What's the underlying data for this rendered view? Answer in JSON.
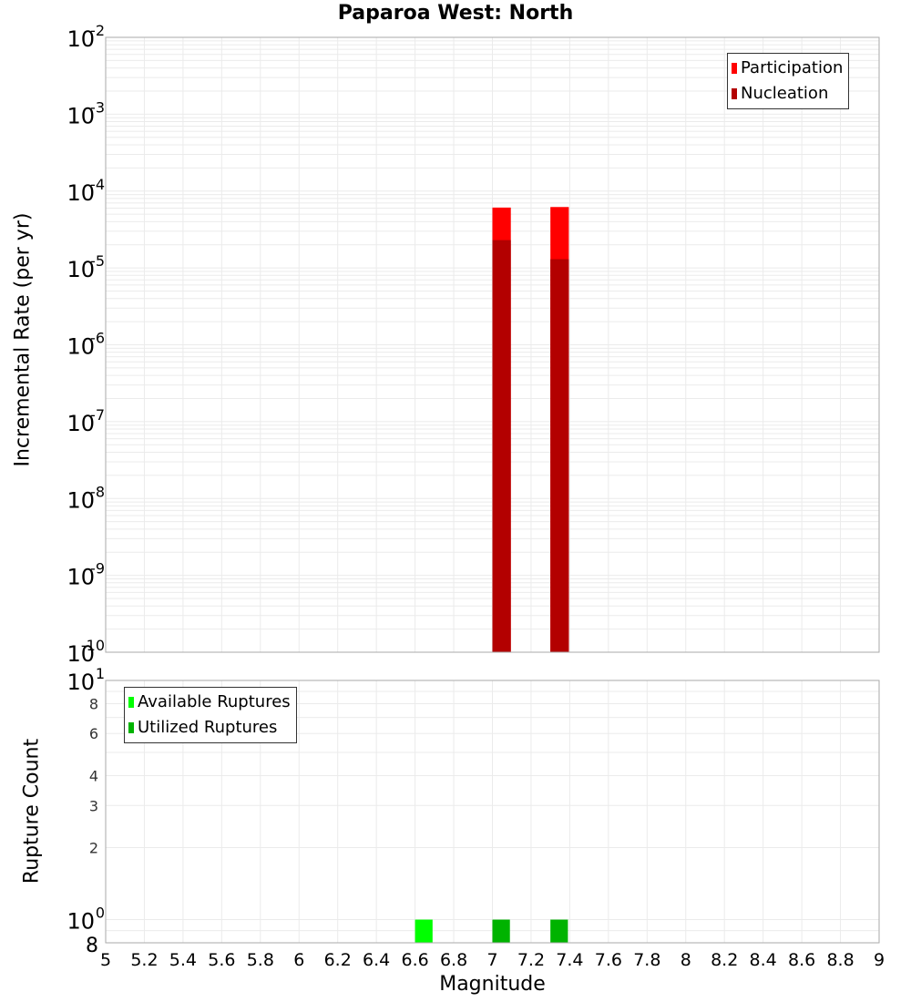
{
  "title": "Paparoa West: North",
  "colors": {
    "participation": "#ff0000",
    "nucleation": "#b30000",
    "available": "#00ff00",
    "utilized": "#00b300",
    "grid": "#ebebeb",
    "frame": "#aaaaaa"
  },
  "top_panel": {
    "ylabel": "Incremental Rate (per yr)",
    "legend": [
      {
        "label": "Participation",
        "color": "#ff0000"
      },
      {
        "label": "Nucleation",
        "color": "#b30000"
      }
    ]
  },
  "bottom_panel": {
    "ylabel": "Rupture Count",
    "legend": [
      {
        "label": "Available Ruptures",
        "color": "#00ff00"
      },
      {
        "label": "Utilized Ruptures",
        "color": "#00b300"
      }
    ]
  },
  "xlabel": "Magnitude",
  "chart_data": [
    {
      "type": "bar",
      "title": "Paparoa West: North",
      "xlabel": "Magnitude",
      "ylabel": "Incremental Rate (per yr)",
      "yscale": "log",
      "ylim": [
        1e-10,
        0.01
      ],
      "xlim": [
        5,
        9
      ],
      "grid": true,
      "legend_position": "top-right",
      "ytick_labels": [
        "10^-10",
        "10^-9",
        "10^-8",
        "10^-7",
        "10^-6",
        "10^-5",
        "10^-4",
        "10^-3",
        "10^-2"
      ],
      "bin_width": 0.1,
      "x": [
        7.05,
        7.35
      ],
      "series": [
        {
          "name": "Participation",
          "color": "#ff0000",
          "values": [
            6.1e-05,
            6.2e-05
          ]
        },
        {
          "name": "Nucleation",
          "color": "#b30000",
          "values": [
            2.3e-05,
            1.3e-05
          ]
        }
      ]
    },
    {
      "type": "bar",
      "xlabel": "Magnitude",
      "ylabel": "Rupture Count",
      "yscale": "log",
      "ylim": [
        8,
        10
      ],
      "xlim": [
        5,
        9
      ],
      "grid": true,
      "legend_position": "top-left",
      "ytick_labels": [
        "8",
        "10^0",
        "2",
        "3",
        "4",
        "6",
        "8",
        "10^1"
      ],
      "bin_width": 0.1,
      "series": [
        {
          "name": "Available Ruptures",
          "color": "#00ff00",
          "x": [
            6.65
          ],
          "values": [
            1
          ]
        },
        {
          "name": "Utilized Ruptures",
          "color": "#00b300",
          "x": [
            7.05,
            7.35
          ],
          "values": [
            1,
            1
          ]
        }
      ]
    }
  ],
  "xticks": [
    "5",
    "5.2",
    "5.4",
    "5.6",
    "5.8",
    "6",
    "6.2",
    "6.4",
    "6.6",
    "6.8",
    "7",
    "7.2",
    "7.4",
    "7.6",
    "7.8",
    "8",
    "8.2",
    "8.4",
    "8.6",
    "8.8",
    "9"
  ]
}
